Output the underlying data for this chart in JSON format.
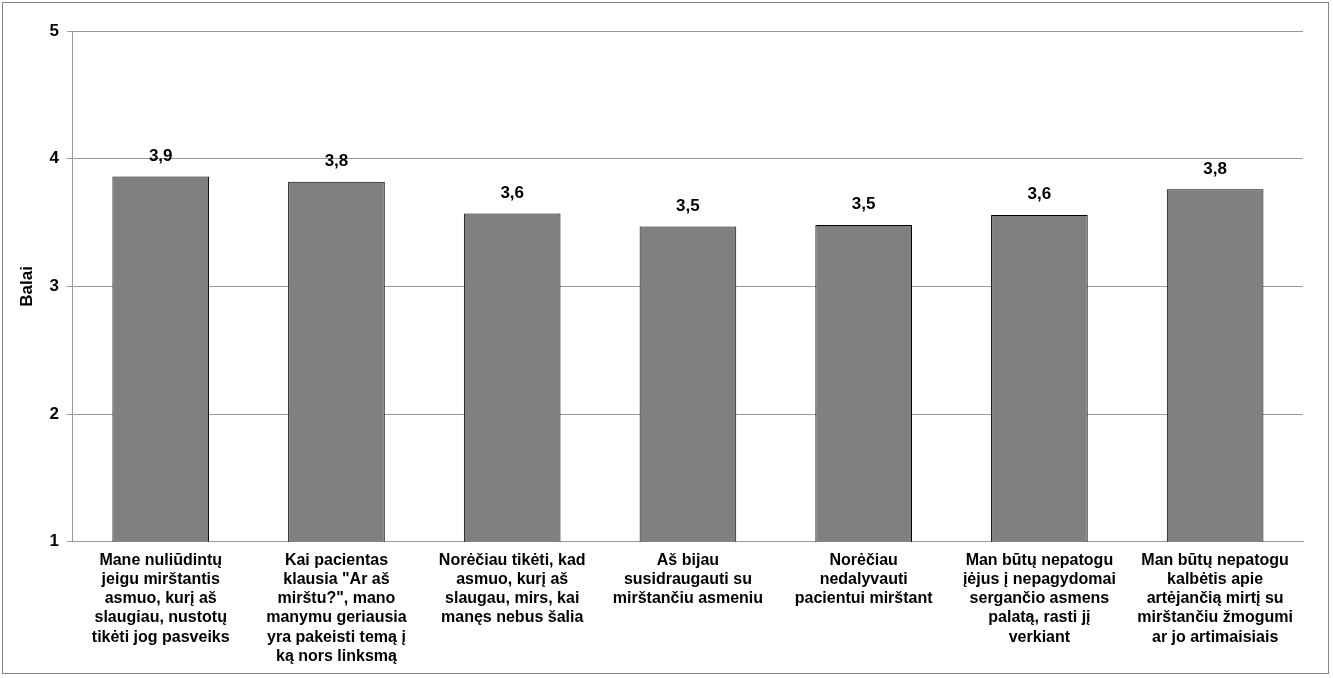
{
  "chart_data": {
    "type": "bar",
    "ylabel": "Balai",
    "categories": [
      "Mane nuliūdintų jeigu mirštantis asmuo, kurį aš slaugiau, nustotų tikėti jog pasveiks",
      "Kai pacientas klausia \"Ar aš mirštu?\", mano manymu geriausia yra pakeisti temą į ką nors linksmą",
      "Norėčiau tikėti, kad asmuo, kurį aš slaugau, mirs, kai manęs nebus šalia",
      "Aš bijau susidraugauti su mirštančiu asmeniu",
      "Norėčiau nedalyvauti pacientui mirštant",
      "Man būtų nepatogu įėjus į nepagydomai sergančio asmens palatą, rasti jį verkiant",
      "Man būtų nepatogu kalbėtis apie artėjančią mirtį su mirštančiu žmogumi ar jo artimaisiais"
    ],
    "values": [
      3.86,
      3.82,
      3.57,
      3.47,
      3.48,
      3.56,
      3.76
    ],
    "value_labels": [
      "3,9",
      "3,8",
      "3,6",
      "3,5",
      "3,5",
      "3,6",
      "3,8"
    ],
    "color": "#808080",
    "ylim": [
      1,
      5
    ],
    "yticks": [
      1,
      2,
      3,
      4,
      5
    ],
    "grid": "y",
    "legend": false
  }
}
